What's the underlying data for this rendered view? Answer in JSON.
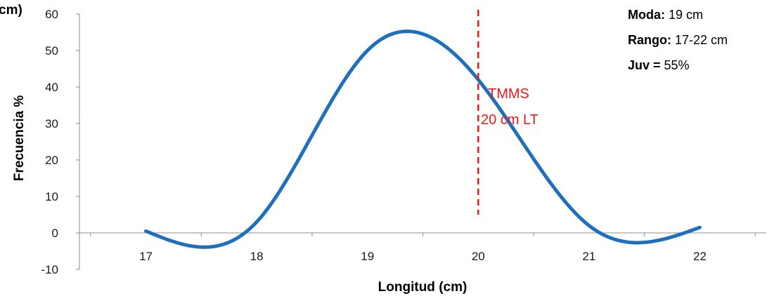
{
  "chart_data": {
    "type": "line",
    "xlabel": "Longitud (cm)",
    "ylabel": "Frecuencia %",
    "ylabel_fragment": "cm)",
    "xlim": [
      16.4,
      22.6
    ],
    "ylim": [
      -10,
      60
    ],
    "x_ticks": [
      "17",
      "18",
      "19",
      "20",
      "21",
      "22"
    ],
    "y_ticks": [
      "60",
      "50",
      "40",
      "30",
      "20",
      "10",
      "0",
      "-10"
    ],
    "grid": false,
    "series": [
      {
        "color": "#1f6fbf",
        "smooth": true,
        "x": [
          17,
          18,
          19,
          20,
          21,
          22
        ],
        "y": [
          0.5,
          3,
          50,
          42,
          2,
          1.5
        ]
      }
    ],
    "annotations": {
      "vline_x": 20,
      "vline_color": "#e8191c",
      "line1": "TMMS",
      "line2": "20 cm LT"
    },
    "info": {
      "moda_label": "Moda:",
      "moda_value": " 19 cm",
      "rango_label": "Rango:",
      "rango_value": " 17-22 cm",
      "juv_label": "Juv = ",
      "juv_value": " 55%"
    }
  }
}
